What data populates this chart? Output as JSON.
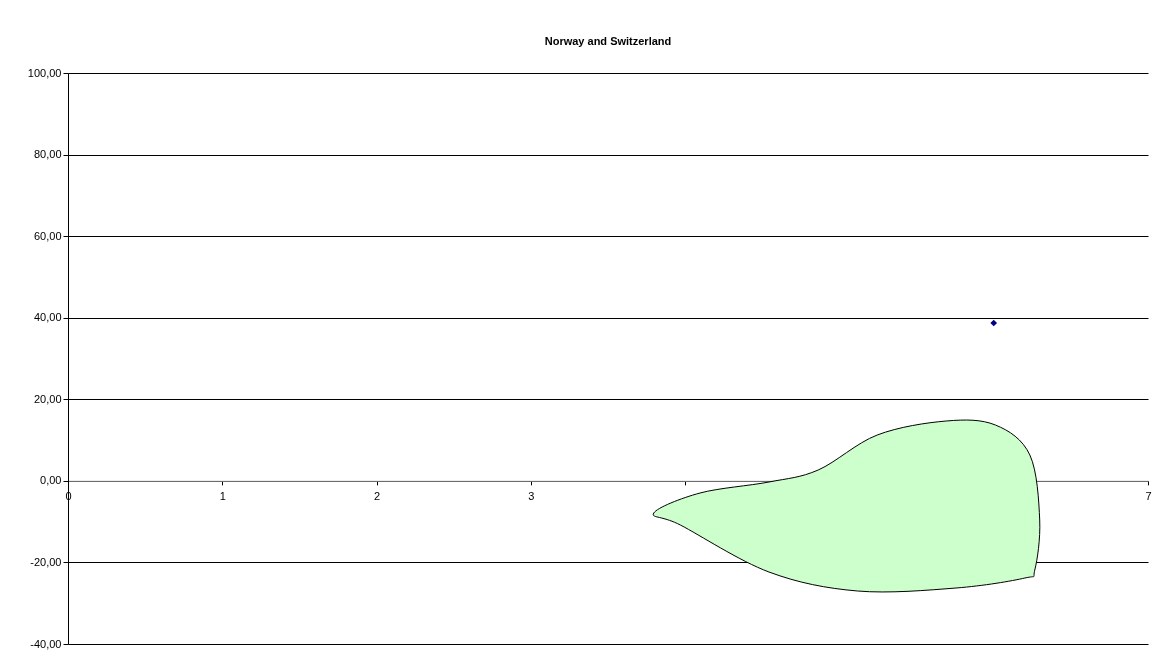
{
  "chart_data": {
    "type": "scatter",
    "title": "Norway and Switzerland",
    "x": [
      6
    ],
    "series": [
      {
        "color": "#000080",
        "values": [
          38.7
        ]
      }
    ],
    "marker": "diamond",
    "xlim": [
      0,
      7
    ],
    "xticks": [
      0,
      1,
      2,
      3,
      {
        "value": 4,
        "label": null
      },
      7
    ],
    "ylim": [
      -40,
      100
    ],
    "yticks": [
      {
        "value": -40,
        "label": "-40,00"
      },
      {
        "value": -20,
        "label": "-20,00"
      },
      {
        "value": 0,
        "label": "0,00"
      },
      {
        "value": 20,
        "label": "20,00"
      },
      {
        "value": 40,
        "label": "40,00"
      },
      {
        "value": 60,
        "label": "60,00"
      },
      {
        "value": 80,
        "label": "80,00"
      },
      {
        "value": 100,
        "label": "100,00"
      }
    ],
    "grid": "y"
  }
}
